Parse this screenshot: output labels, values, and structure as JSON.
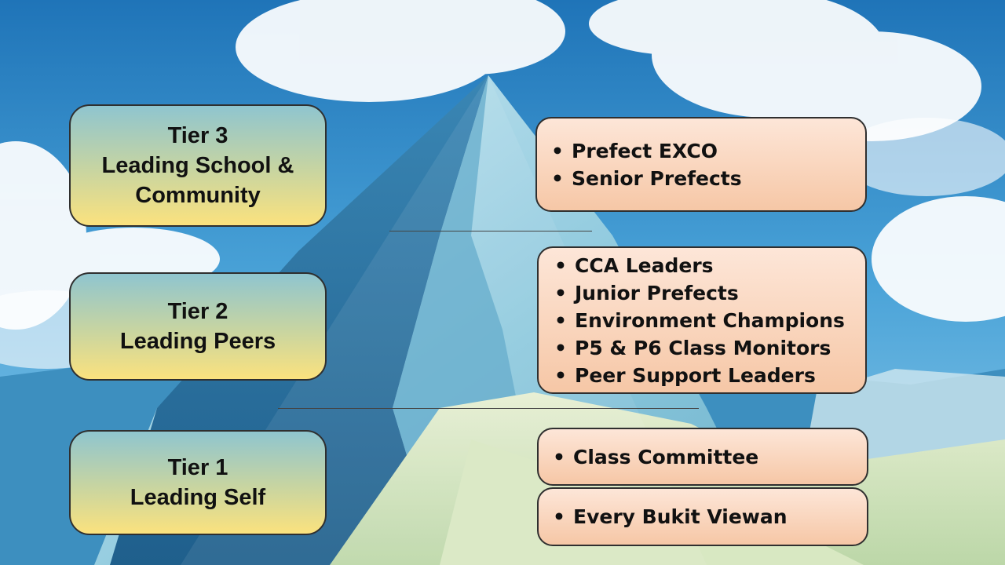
{
  "colors": {
    "sky_top": "#1f74b8",
    "sky_light": "#7fc2ea",
    "mountain_shadow": "#2f7fb0",
    "mountain_light": "#a8d7ea",
    "snow": "#f4f8ee",
    "tier_gradient_top": "#8fc5cf",
    "tier_gradient_bottom": "#fbe27e",
    "roles_gradient_top": "#fde6d8",
    "roles_gradient_bottom": "#f6c7a6",
    "border": "#2f2f2f"
  },
  "tiers": [
    {
      "lines": [
        "Tier 3",
        "Leading School &",
        "Community"
      ]
    },
    {
      "lines": [
        "Tier 2",
        "Leading Peers"
      ]
    },
    {
      "lines": [
        "Tier 1",
        "Leading Self"
      ]
    }
  ],
  "roles": {
    "tier3": [
      "Prefect EXCO",
      "Senior Prefects"
    ],
    "tier2": [
      "CCA Leaders",
      "Junior Prefects",
      "Environment Champions",
      "P5 & P6 Class Monitors",
      "Peer Support Leaders"
    ],
    "tier1a": [
      "Class Committee"
    ],
    "tier1b": [
      "Every Bukit Viewan"
    ]
  }
}
